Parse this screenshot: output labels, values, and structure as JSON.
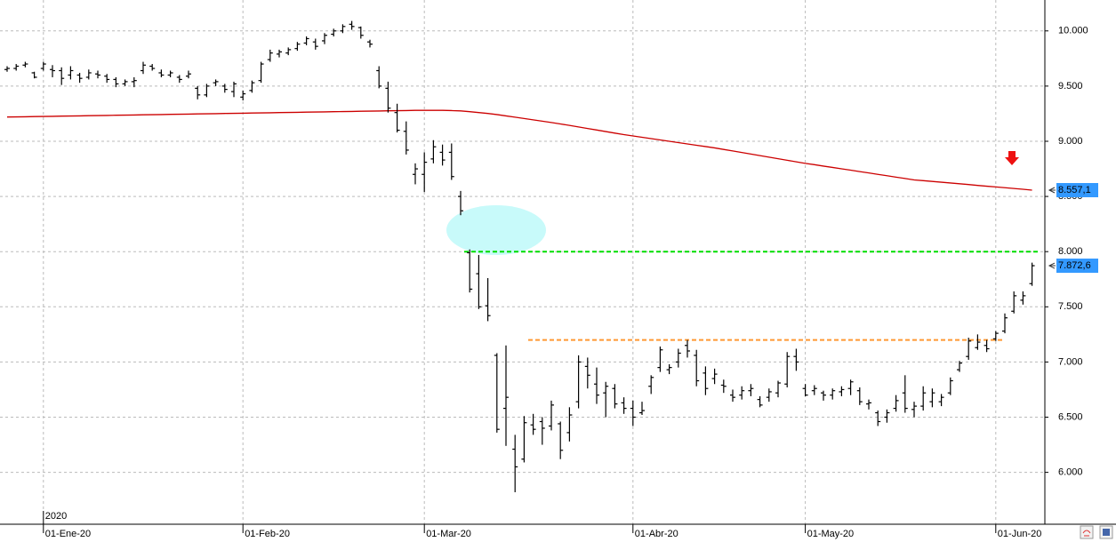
{
  "chart_data": {
    "type": "ohlc",
    "categories": [
      null,
      null,
      null,
      null,
      "01-Ene-20",
      null,
      null,
      null,
      null,
      null,
      null,
      null,
      null,
      null,
      null,
      null,
      null,
      null,
      null,
      null,
      null,
      null,
      null,
      null,
      null,
      null,
      "01-Feb-20",
      null,
      null,
      null,
      null,
      null,
      null,
      null,
      null,
      null,
      null,
      null,
      null,
      null,
      null,
      null,
      null,
      null,
      null,
      null,
      "01-Mar-20",
      null,
      null,
      null,
      null,
      null,
      null,
      null,
      null,
      null,
      null,
      null,
      null,
      null,
      null,
      null,
      null,
      null,
      null,
      null,
      null,
      null,
      null,
      "01-Abr-20",
      null,
      null,
      null,
      null,
      null,
      null,
      null,
      null,
      null,
      null,
      null,
      null,
      null,
      null,
      null,
      null,
      null,
      null,
      "01-May-20",
      null,
      null,
      null,
      null,
      null,
      null,
      null,
      null,
      null,
      null,
      null,
      null,
      null,
      null,
      null,
      null,
      null,
      null,
      null,
      null,
      "01-Jun-20",
      null,
      null,
      null,
      null
    ],
    "year_label": "2020",
    "color": "#000000",
    "open": [
      9650,
      9660,
      9690,
      9620,
      9660,
      9650,
      9640,
      9600,
      9600,
      9580,
      9610,
      9590,
      9560,
      9520,
      9540,
      9640,
      9680,
      9620,
      9600,
      9580,
      9590,
      9480,
      9420,
      9530,
      9500,
      9450,
      9400,
      9460,
      9550,
      9740,
      9790,
      9800,
      9840,
      9890,
      9900,
      9910,
      9970,
      10000,
      10060,
      10030,
      9900,
      9640,
      9480,
      9260,
      9090,
      8700,
      8700,
      8840,
      8900,
      8900,
      8500,
      7990,
      7800,
      7510,
      7060,
      6580,
      6210,
      6120,
      6430,
      6460,
      6420,
      6440,
      6360,
      6640,
      6960,
      6800,
      6720,
      6760,
      6630,
      6580,
      6540,
      6780,
      6950,
      6930,
      7000,
      7150,
      7060,
      6900,
      6850,
      6790,
      6700,
      6700,
      6740,
      6660,
      6680,
      6720,
      6800,
      7050,
      6760,
      6740,
      6720,
      6700,
      6730,
      6760,
      6740,
      6620,
      6540,
      6500,
      6580,
      6720,
      6570,
      6600,
      6640,
      6640,
      6720,
      6930,
      7050,
      7130,
      7150,
      7210,
      7280,
      7460,
      7560,
      7710
    ],
    "high": [
      9680,
      9700,
      9720,
      9630,
      9720,
      9690,
      9670,
      9680,
      9620,
      9650,
      9640,
      9610,
      9580,
      9560,
      9580,
      9720,
      9700,
      9650,
      9640,
      9600,
      9640,
      9500,
      9520,
      9560,
      9520,
      9540,
      9460,
      9550,
      9720,
      9830,
      9830,
      9850,
      9900,
      9950,
      9930,
      9980,
      10020,
      10060,
      10090,
      10040,
      9920,
      9680,
      9540,
      9340,
      9180,
      8800,
      8900,
      9010,
      8970,
      8980,
      8550,
      8020,
      7970,
      7760,
      7080,
      7150,
      6340,
      6510,
      6530,
      6500,
      6650,
      6460,
      6590,
      7060,
      7040,
      6950,
      6820,
      6800,
      6680,
      6650,
      6640,
      6880,
      7140,
      6980,
      7120,
      7200,
      7110,
      6960,
      6940,
      6840,
      6750,
      6780,
      6800,
      6690,
      6760,
      6830,
      7090,
      7120,
      6800,
      6790,
      6740,
      6760,
      6780,
      6840,
      6770,
      6660,
      6560,
      6570,
      6700,
      6880,
      6640,
      6780,
      6760,
      6710,
      6860,
      7010,
      7220,
      7250,
      7200,
      7280,
      7440,
      7640,
      7640,
      7900
    ],
    "low": [
      9630,
      9640,
      9670,
      9570,
      9640,
      9580,
      9510,
      9560,
      9530,
      9560,
      9570,
      9530,
      9490,
      9500,
      9490,
      9610,
      9640,
      9580,
      9580,
      9530,
      9570,
      9380,
      9400,
      9500,
      9440,
      9400,
      9370,
      9440,
      9530,
      9720,
      9760,
      9780,
      9820,
      9870,
      9830,
      9880,
      9950,
      9980,
      10010,
      9930,
      9850,
      9480,
      9260,
      9080,
      8880,
      8610,
      8540,
      8800,
      8780,
      8650,
      8330,
      7630,
      7480,
      7370,
      6360,
      6240,
      5820,
      6090,
      6340,
      6250,
      6380,
      6120,
      6280,
      6580,
      6760,
      6620,
      6500,
      6580,
      6530,
      6420,
      6520,
      6710,
      6910,
      6890,
      6950,
      7040,
      6780,
      6700,
      6800,
      6720,
      6640,
      6660,
      6690,
      6590,
      6640,
      6680,
      6770,
      6920,
      6690,
      6700,
      6650,
      6660,
      6690,
      6700,
      6610,
      6570,
      6420,
      6450,
      6550,
      6540,
      6500,
      6560,
      6590,
      6600,
      6700,
      6910,
      7020,
      7110,
      7090,
      7190,
      7260,
      7440,
      7520,
      7690
    ],
    "close": [
      9660,
      9680,
      9700,
      9580,
      9700,
      9640,
      9570,
      9640,
      9570,
      9620,
      9600,
      9560,
      9520,
      9540,
      9550,
      9690,
      9660,
      9600,
      9620,
      9560,
      9610,
      9420,
      9500,
      9540,
      9470,
      9520,
      9430,
      9530,
      9700,
      9800,
      9810,
      9830,
      9880,
      9930,
      9860,
      9960,
      10000,
      10040,
      10040,
      9960,
      9880,
      9500,
      9300,
      9100,
      8920,
      8750,
      8810,
      8950,
      8830,
      8680,
      8370,
      7660,
      7500,
      7420,
      6390,
      6680,
      6050,
      6450,
      6390,
      6400,
      6610,
      6200,
      6520,
      7000,
      6880,
      6700,
      6780,
      6620,
      6580,
      6500,
      6560,
      6860,
      7110,
      6950,
      7080,
      7100,
      6830,
      6760,
      6890,
      6780,
      6680,
      6740,
      6760,
      6610,
      6730,
      6810,
      7050,
      7000,
      6700,
      6760,
      6700,
      6740,
      6750,
      6820,
      6640,
      6630,
      6460,
      6540,
      6650,
      6580,
      6600,
      6720,
      6720,
      6680,
      6830,
      6990,
      7190,
      7180,
      7120,
      7260,
      7400,
      7600,
      7600,
      7872.6
    ],
    "moving_average": {
      "color": "#cc0000",
      "values": [
        9220,
        9221,
        9222,
        9224,
        9225,
        9226,
        9228,
        9229,
        9230,
        9232,
        9233,
        9234,
        9236,
        9237,
        9238,
        9240,
        9241,
        9242,
        9244,
        9245,
        9246,
        9248,
        9249,
        9250,
        9252,
        9253,
        9254,
        9256,
        9257,
        9258,
        9260,
        9261,
        9262,
        9264,
        9265,
        9266,
        9268,
        9269,
        9270,
        9272,
        9273,
        9274,
        9276,
        9277,
        9278,
        9280,
        9280,
        9280,
        9280,
        9278,
        9275,
        9268,
        9260,
        9252,
        9242,
        9230,
        9218,
        9206,
        9194,
        9182,
        9170,
        9157,
        9144,
        9130,
        9116,
        9102,
        9088,
        9074,
        9060,
        9048,
        9036,
        9024,
        9012,
        9000,
        8988,
        8976,
        8964,
        8952,
        8940,
        8926,
        8912,
        8898,
        8884,
        8870,
        8856,
        8842,
        8828,
        8814,
        8800,
        8788,
        8775,
        8763,
        8750,
        8738,
        8725,
        8713,
        8700,
        8688,
        8675,
        8663,
        8650,
        8643,
        8636,
        8629,
        8622,
        8615,
        8608,
        8600,
        8593,
        8586,
        8579,
        8572,
        8565,
        8557.1
      ]
    },
    "hlines": [
      {
        "value": 8000,
        "color": "#00dd00"
      },
      {
        "value": 7200,
        "color": "#ff9933"
      }
    ],
    "last_labels": [
      {
        "value": 8557.1,
        "label": "8.557,1"
      },
      {
        "value": 7872.6,
        "label": "7.872,6"
      }
    ],
    "ylim": [
      5530,
      10280
    ],
    "yticks": [
      {
        "value": 6000,
        "label": "6.000"
      },
      {
        "value": 6500,
        "label": "6.500"
      },
      {
        "value": 7000,
        "label": "7.000"
      },
      {
        "value": 7500,
        "label": "7.500"
      },
      {
        "value": 8000,
        "label": "8.000"
      },
      {
        "value": 8500,
        "label": "8.500"
      },
      {
        "value": 9000,
        "label": "9.000"
      },
      {
        "value": 9500,
        "label": "9.500"
      },
      {
        "value": 10000,
        "label": "10.000"
      }
    ],
    "grid": true
  }
}
